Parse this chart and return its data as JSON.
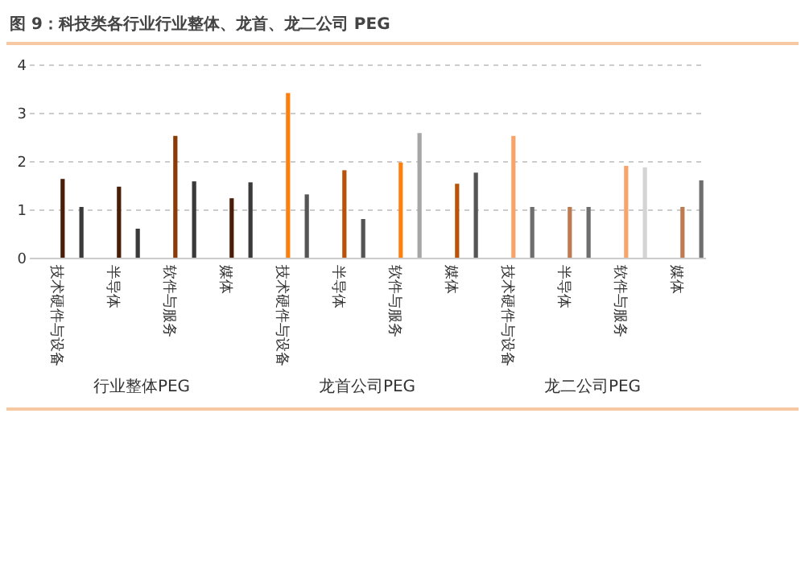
{
  "chart_data": {
    "type": "bar",
    "title": "图 9：科技类各行业行业整体、龙首、龙二公司 PEG",
    "categories": [
      "技术硬件与设备",
      "半导体",
      "软件与服务",
      "媒体",
      "技术硬件与设备",
      "半导体",
      "软件与服务",
      "媒体",
      "技术硬件与设备",
      "半导体",
      "软件与服务",
      "媒体"
    ],
    "series": [
      {
        "colors": [
          "#4a1d06",
          "#4a1d06",
          "#8a3a05",
          "#4a1d06",
          "#ff7f0e",
          "#b85308",
          "#ff7f0e",
          "#b85308",
          "#f7a36a",
          "#c07a50",
          "#f7a36a",
          "#c07a50"
        ],
        "values": [
          1.63,
          1.47,
          2.52,
          1.23,
          3.41,
          1.81,
          1.97,
          1.53,
          2.52,
          1.05,
          1.9,
          1.05
        ]
      },
      {
        "colors": [
          "#3a3a3a",
          "#3a3a3a",
          "#3a3a3a",
          "#3a3a3a",
          "#555555",
          "#555555",
          "#a6a6a6",
          "#555555",
          "#6e6e6e",
          "#6e6e6e",
          "#d4d4d4",
          "#6e6e6e"
        ],
        "values": [
          1.05,
          0.6,
          1.58,
          1.56,
          1.31,
          0.8,
          2.58,
          1.76,
          1.05,
          1.05,
          1.87,
          1.6
        ]
      }
    ],
    "ylim": [
      0,
      4
    ],
    "yticks": [
      0,
      1,
      2,
      3,
      4
    ],
    "grid": "y",
    "annotations": [
      "行业整体PEG",
      "龙首公司PEG",
      "龙二公司PEG"
    ]
  }
}
